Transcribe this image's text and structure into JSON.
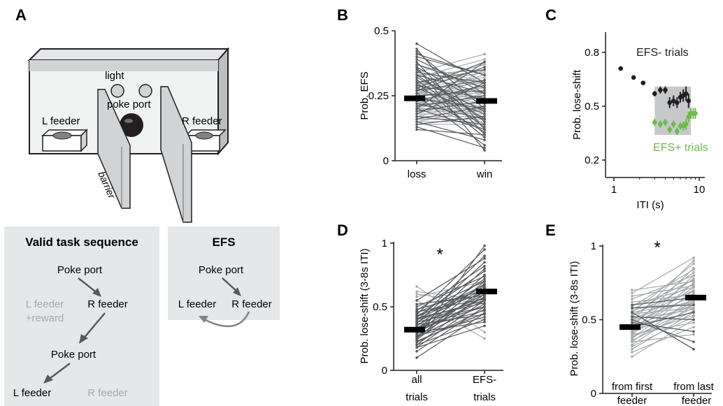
{
  "panels": {
    "A": {
      "letter": "A"
    },
    "B": {
      "letter": "B"
    },
    "C": {
      "letter": "C"
    },
    "D": {
      "letter": "D"
    },
    "E": {
      "letter": "E"
    }
  },
  "apparatus": {
    "light": "light",
    "poke_port": "poke port",
    "l_feeder": "L feeder",
    "r_feeder": "R feeder",
    "barrier": "barrier"
  },
  "valid_sequence": {
    "title": "Valid task sequence",
    "poke_port_1": "Poke port",
    "l_feeder_reward_1": "L feeder",
    "l_feeder_reward_2": "+reward",
    "r_feeder_1": "R feeder",
    "poke_port_2": "Poke port",
    "l_feeder_2": "L feeder",
    "r_feeder_2": "R feeder"
  },
  "efs_box": {
    "title": "EFS",
    "poke_port": "Poke port",
    "l_feeder": "L feeder",
    "r_feeder": "R feeder"
  },
  "colors": {
    "dark_line": "#58595b",
    "light_line": "#a7a9ac",
    "mean_bar": "#000000",
    "efs_minus": "#231f20",
    "efs_plus": "#6abd45",
    "shade": "#c7c8ca",
    "box_bg": "#e6e7e8",
    "inactive_text": "#a7a9ac"
  },
  "chart_data": [
    {
      "panel": "B",
      "type": "line",
      "ylabel": "Prob. EFS",
      "categories": [
        "loss",
        "win"
      ],
      "yticks": [
        "0",
        "0.25",
        "0.5"
      ],
      "ylim": [
        0,
        0.5
      ],
      "means": [
        0.24,
        0.23
      ],
      "pairs_dark": [
        [
          0.45,
          0.3
        ],
        [
          0.42,
          0.2
        ],
        [
          0.4,
          0.33
        ],
        [
          0.38,
          0.1
        ],
        [
          0.37,
          0.28
        ],
        [
          0.36,
          0.22
        ],
        [
          0.35,
          0.15
        ],
        [
          0.34,
          0.3
        ],
        [
          0.33,
          0.26
        ],
        [
          0.32,
          0.19
        ],
        [
          0.31,
          0.13
        ],
        [
          0.3,
          0.35
        ],
        [
          0.29,
          0.24
        ],
        [
          0.28,
          0.18
        ],
        [
          0.27,
          0.31
        ],
        [
          0.26,
          0.11
        ],
        [
          0.25,
          0.27
        ],
        [
          0.24,
          0.2
        ],
        [
          0.23,
          0.29
        ],
        [
          0.22,
          0.16
        ],
        [
          0.21,
          0.25
        ],
        [
          0.2,
          0.12
        ],
        [
          0.19,
          0.23
        ],
        [
          0.18,
          0.3
        ],
        [
          0.17,
          0.14
        ],
        [
          0.16,
          0.21
        ],
        [
          0.15,
          0.08
        ],
        [
          0.14,
          0.17
        ],
        [
          0.13,
          0.05
        ],
        [
          0.12,
          0.1
        ],
        [
          0.28,
          0.38
        ],
        [
          0.3,
          0.09
        ],
        [
          0.33,
          0.16
        ],
        [
          0.36,
          0.04
        ],
        [
          0.39,
          0.26
        ],
        [
          0.41,
          0.33
        ],
        [
          0.43,
          0.12
        ],
        [
          0.2,
          0.38
        ],
        [
          0.25,
          0.06
        ],
        [
          0.27,
          0.36
        ]
      ],
      "pairs_light": [
        [
          0.34,
          0.41
        ],
        [
          0.32,
          0.39
        ],
        [
          0.3,
          0.37
        ],
        [
          0.29,
          0.34
        ],
        [
          0.28,
          0.32
        ],
        [
          0.27,
          0.3
        ],
        [
          0.26,
          0.28
        ],
        [
          0.25,
          0.26
        ],
        [
          0.24,
          0.25
        ],
        [
          0.23,
          0.24
        ],
        [
          0.22,
          0.22
        ],
        [
          0.21,
          0.21
        ],
        [
          0.2,
          0.2
        ],
        [
          0.19,
          0.19
        ],
        [
          0.18,
          0.18
        ],
        [
          0.17,
          0.17
        ],
        [
          0.16,
          0.16
        ],
        [
          0.15,
          0.15
        ],
        [
          0.14,
          0.14
        ],
        [
          0.26,
          0.33
        ],
        [
          0.24,
          0.31
        ],
        [
          0.22,
          0.29
        ],
        [
          0.2,
          0.27
        ],
        [
          0.18,
          0.25
        ],
        [
          0.31,
          0.22
        ],
        [
          0.29,
          0.2
        ],
        [
          0.27,
          0.18
        ],
        [
          0.35,
          0.28
        ],
        [
          0.37,
          0.3
        ],
        [
          0.21,
          0.35
        ],
        [
          0.19,
          0.26
        ],
        [
          0.17,
          0.23
        ],
        [
          0.15,
          0.2
        ],
        [
          0.23,
          0.12
        ],
        [
          0.28,
          0.14
        ],
        [
          0.3,
          0.26
        ],
        [
          0.33,
          0.35
        ],
        [
          0.26,
          0.22
        ],
        [
          0.24,
          0.19
        ],
        [
          0.22,
          0.17
        ]
      ]
    },
    {
      "panel": "C",
      "type": "scatter",
      "ylabel": "Prob. lose-shift",
      "xlabel": "ITI (s)",
      "xscale": "log",
      "xticks": [
        "1",
        "10"
      ],
      "yticks": [
        "0.2",
        "0.5",
        "0.8"
      ],
      "ylim": [
        0.2,
        0.8
      ],
      "xlim": [
        1,
        10
      ],
      "shaded_range": [
        3,
        8
      ],
      "series": [
        {
          "name": "EFS- trials",
          "x": [
            1.2,
            1.7,
            2.2,
            3.0,
            3.5,
            4.0,
            4.5,
            5.0,
            5.5,
            6.0,
            6.5,
            7.0,
            7.5
          ],
          "y": [
            0.71,
            0.66,
            0.63,
            0.57,
            0.59,
            0.59,
            0.52,
            0.53,
            0.52,
            0.55,
            0.56,
            0.57,
            0.53
          ],
          "err": [
            0,
            0,
            0,
            0.015,
            0.02,
            0.02,
            0.03,
            0.03,
            0.03,
            0.03,
            0.035,
            0.04,
            0.04
          ]
        },
        {
          "name": "EFS+ trials",
          "x": [
            3.0,
            3.5,
            4.0,
            4.5,
            5.0,
            5.5,
            6.0,
            6.5,
            7.0,
            7.5,
            8.0,
            8.5,
            9.0
          ],
          "y": [
            0.41,
            0.4,
            0.41,
            0.37,
            0.4,
            0.36,
            0.39,
            0.39,
            0.4,
            0.44,
            0.46,
            0.46,
            0.46
          ],
          "err": [
            0.02,
            0.02,
            0.02,
            0.02,
            0.02,
            0.02,
            0.02,
            0.025,
            0.03,
            0.03,
            0.03,
            0.03,
            0.03
          ]
        }
      ]
    },
    {
      "panel": "D",
      "type": "line",
      "ylabel": "Prob. lose-shift (3-8s ITI)",
      "categories": [
        "all trials",
        "EFS- trials"
      ],
      "yticks": [
        "0",
        "0.5",
        "1"
      ],
      "ylim": [
        0,
        1
      ],
      "means": [
        0.32,
        0.62
      ],
      "significance": "*",
      "pairs_dark": [
        [
          0.1,
          0.45
        ],
        [
          0.15,
          0.5
        ],
        [
          0.18,
          0.55
        ],
        [
          0.2,
          0.6
        ],
        [
          0.22,
          0.48
        ],
        [
          0.24,
          0.65
        ],
        [
          0.25,
          0.7
        ],
        [
          0.26,
          0.52
        ],
        [
          0.27,
          0.58
        ],
        [
          0.28,
          0.75
        ],
        [
          0.29,
          0.62
        ],
        [
          0.3,
          0.55
        ],
        [
          0.31,
          0.8
        ],
        [
          0.32,
          0.6
        ],
        [
          0.33,
          0.68
        ],
        [
          0.34,
          0.5
        ],
        [
          0.35,
          0.72
        ],
        [
          0.36,
          0.57
        ],
        [
          0.37,
          0.85
        ],
        [
          0.38,
          0.64
        ],
        [
          0.39,
          0.9
        ],
        [
          0.4,
          0.66
        ],
        [
          0.41,
          0.53
        ],
        [
          0.42,
          0.78
        ],
        [
          0.43,
          0.61
        ],
        [
          0.44,
          0.95
        ],
        [
          0.45,
          0.7
        ],
        [
          0.46,
          0.56
        ],
        [
          0.47,
          0.82
        ],
        [
          0.48,
          0.63
        ],
        [
          0.5,
          0.74
        ],
        [
          0.52,
          0.59
        ],
        [
          0.55,
          0.88
        ],
        [
          0.2,
          0.4
        ],
        [
          0.23,
          0.45
        ],
        [
          0.27,
          0.42
        ],
        [
          0.3,
          0.38
        ],
        [
          0.33,
          0.47
        ],
        [
          0.36,
          0.44
        ],
        [
          0.38,
          0.5
        ],
        [
          0.25,
          0.98
        ],
        [
          0.18,
          0.35
        ],
        [
          0.4,
          0.55
        ],
        [
          0.42,
          0.67
        ]
      ],
      "pairs_light": [
        [
          0.62,
          0.55
        ],
        [
          0.6,
          0.52
        ],
        [
          0.58,
          0.7
        ],
        [
          0.66,
          0.3
        ],
        [
          0.55,
          0.25
        ],
        [
          0.45,
          0.4
        ]
      ]
    },
    {
      "panel": "E",
      "type": "line",
      "ylabel": "Prob. lose-shift (3-8s ITI)",
      "categories": [
        "from first feeder",
        "from last feeder"
      ],
      "yticks": [
        "0",
        "0.5",
        "1"
      ],
      "ylim": [
        0,
        1
      ],
      "means": [
        0.45,
        0.65
      ],
      "significance": "*",
      "pairs_light": [
        [
          0.3,
          0.55
        ],
        [
          0.33,
          0.6
        ],
        [
          0.35,
          0.65
        ],
        [
          0.37,
          0.7
        ],
        [
          0.38,
          0.58
        ],
        [
          0.4,
          0.75
        ],
        [
          0.41,
          0.62
        ],
        [
          0.42,
          0.8
        ],
        [
          0.43,
          0.68
        ],
        [
          0.44,
          0.72
        ],
        [
          0.45,
          0.85
        ],
        [
          0.46,
          0.6
        ],
        [
          0.47,
          0.78
        ],
        [
          0.48,
          0.66
        ],
        [
          0.49,
          0.9
        ],
        [
          0.5,
          0.7
        ],
        [
          0.51,
          0.63
        ],
        [
          0.52,
          0.82
        ],
        [
          0.53,
          0.74
        ],
        [
          0.54,
          0.58
        ],
        [
          0.55,
          0.88
        ],
        [
          0.56,
          0.69
        ],
        [
          0.57,
          0.77
        ],
        [
          0.58,
          0.61
        ],
        [
          0.59,
          0.84
        ],
        [
          0.6,
          0.72
        ],
        [
          0.62,
          0.67
        ],
        [
          0.64,
          0.8
        ],
        [
          0.66,
          0.73
        ],
        [
          0.68,
          0.92
        ],
        [
          0.7,
          0.76
        ],
        [
          0.25,
          0.5
        ],
        [
          0.28,
          0.45
        ],
        [
          0.32,
          0.52
        ],
        [
          0.36,
          0.56
        ],
        [
          0.39,
          0.53
        ],
        [
          0.42,
          0.6
        ],
        [
          0.46,
          0.55
        ],
        [
          0.5,
          0.57
        ],
        [
          0.35,
          0.4
        ],
        [
          0.4,
          0.48
        ],
        [
          0.55,
          0.62
        ]
      ],
      "pairs_dark": [
        [
          0.55,
          0.3
        ],
        [
          0.5,
          0.35
        ],
        [
          0.48,
          0.42
        ],
        [
          0.52,
          0.5
        ],
        [
          0.45,
          0.55
        ],
        [
          0.6,
          0.65
        ],
        [
          0.58,
          0.6
        ]
      ]
    }
  ]
}
